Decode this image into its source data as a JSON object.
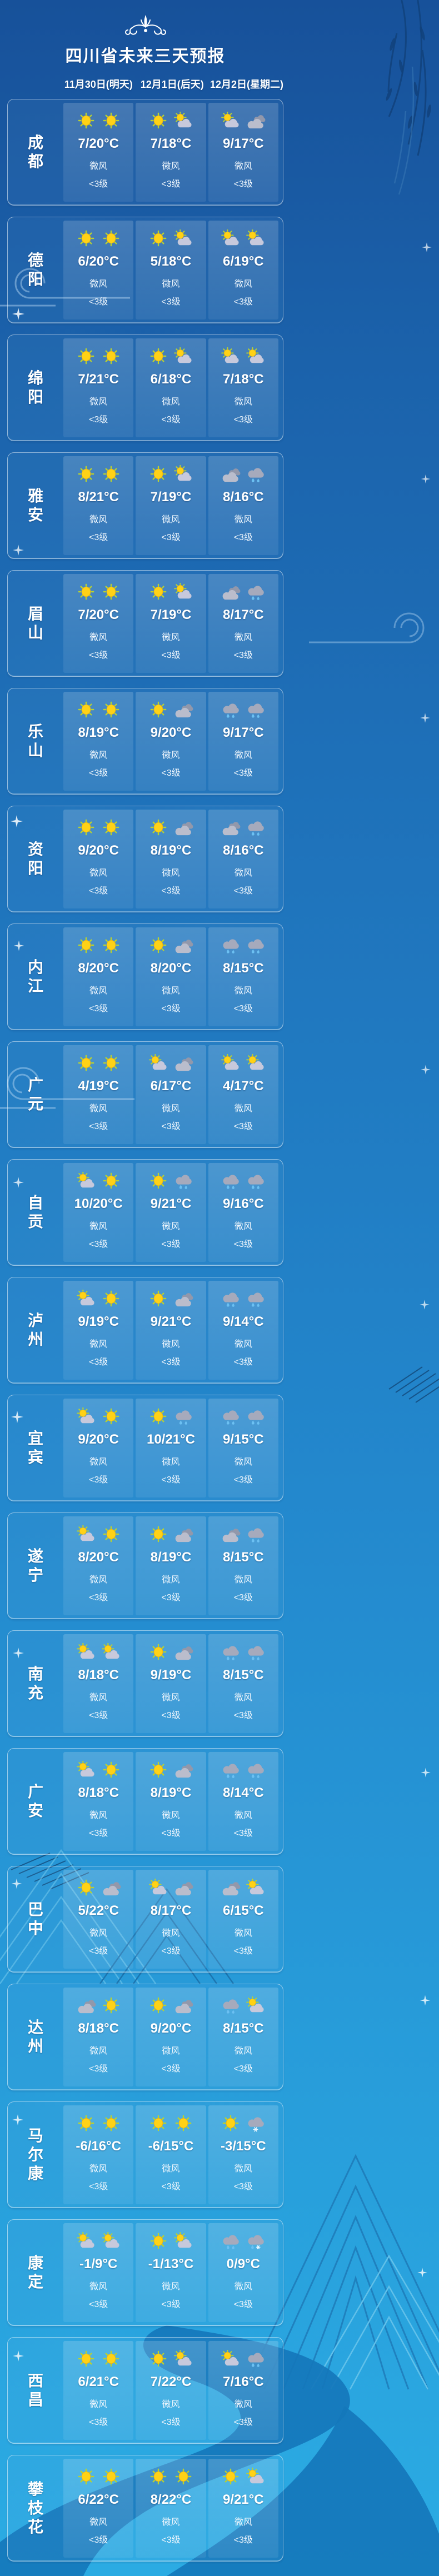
{
  "title": "四川省未来三天预报",
  "dates": [
    "11月30日(明天)",
    "12月1日(后天)",
    "12月2日(星期二)"
  ],
  "wind": {
    "label": "微风",
    "level": "<3级"
  },
  "theme": {
    "bg_top": "#17519a",
    "bg_bottom": "#2babe3",
    "card_border": "rgba(255,255,255,0.5)",
    "text": "#ffffff",
    "sun": "#ffd216",
    "sun_ray": "#b9d22f",
    "cloud_light": "#c7c9dc",
    "cloud_dark": "#9298ab",
    "rain_drop": "#6cc0f2",
    "river": "#1577bb"
  },
  "rows": [
    {
      "city": "成都",
      "cells": [
        {
          "icons": [
            "sunny",
            "sunny"
          ],
          "temp": "7/20°C"
        },
        {
          "icons": [
            "sunny",
            "partly"
          ],
          "temp": "7/18°C"
        },
        {
          "icons": [
            "partly",
            "cloudy"
          ],
          "temp": "9/17°C"
        }
      ]
    },
    {
      "city": "德阳",
      "cells": [
        {
          "icons": [
            "sunny",
            "sunny"
          ],
          "temp": "6/20°C"
        },
        {
          "icons": [
            "sunny",
            "partly"
          ],
          "temp": "5/18°C"
        },
        {
          "icons": [
            "partly",
            "partly"
          ],
          "temp": "6/19°C"
        }
      ]
    },
    {
      "city": "绵阳",
      "cells": [
        {
          "icons": [
            "sunny",
            "sunny"
          ],
          "temp": "7/21°C"
        },
        {
          "icons": [
            "sunny",
            "partly"
          ],
          "temp": "6/18°C"
        },
        {
          "icons": [
            "partly",
            "partly"
          ],
          "temp": "7/18°C"
        }
      ]
    },
    {
      "city": "雅安",
      "cells": [
        {
          "icons": [
            "sunny",
            "sunny"
          ],
          "temp": "8/21°C"
        },
        {
          "icons": [
            "sunny",
            "partly"
          ],
          "temp": "7/19°C"
        },
        {
          "icons": [
            "cloudy",
            "rain"
          ],
          "temp": "8/16°C"
        }
      ]
    },
    {
      "city": "眉山",
      "cells": [
        {
          "icons": [
            "sunny",
            "sunny"
          ],
          "temp": "7/20°C"
        },
        {
          "icons": [
            "sunny",
            "partly"
          ],
          "temp": "7/19°C"
        },
        {
          "icons": [
            "cloudy",
            "rain"
          ],
          "temp": "8/17°C"
        }
      ]
    },
    {
      "city": "乐山",
      "cells": [
        {
          "icons": [
            "sunny",
            "sunny"
          ],
          "temp": "8/19°C"
        },
        {
          "icons": [
            "sunny",
            "cloudy"
          ],
          "temp": "9/20°C"
        },
        {
          "icons": [
            "rain",
            "rain"
          ],
          "temp": "9/17°C"
        }
      ]
    },
    {
      "city": "资阳",
      "cells": [
        {
          "icons": [
            "sunny",
            "sunny"
          ],
          "temp": "9/20°C"
        },
        {
          "icons": [
            "sunny",
            "cloudy"
          ],
          "temp": "8/19°C"
        },
        {
          "icons": [
            "cloudy",
            "rain"
          ],
          "temp": "8/16°C"
        }
      ]
    },
    {
      "city": "内江",
      "cells": [
        {
          "icons": [
            "sunny",
            "sunny"
          ],
          "temp": "8/20°C"
        },
        {
          "icons": [
            "sunny",
            "cloudy"
          ],
          "temp": "8/20°C"
        },
        {
          "icons": [
            "rain",
            "rain"
          ],
          "temp": "8/15°C"
        }
      ]
    },
    {
      "city": "广元",
      "cells": [
        {
          "icons": [
            "sunny",
            "sunny"
          ],
          "temp": "4/19°C"
        },
        {
          "icons": [
            "partly",
            "cloudy"
          ],
          "temp": "6/17°C"
        },
        {
          "icons": [
            "partly",
            "partly"
          ],
          "temp": "4/17°C"
        }
      ]
    },
    {
      "city": "自贡",
      "cells": [
        {
          "icons": [
            "partly",
            "sunny"
          ],
          "temp": "10/20°C"
        },
        {
          "icons": [
            "sunny",
            "rain"
          ],
          "temp": "9/21°C"
        },
        {
          "icons": [
            "rain",
            "rain"
          ],
          "temp": "9/16°C"
        }
      ]
    },
    {
      "city": "泸州",
      "cells": [
        {
          "icons": [
            "partly",
            "sunny"
          ],
          "temp": "9/19°C"
        },
        {
          "icons": [
            "sunny",
            "cloudy"
          ],
          "temp": "9/21°C"
        },
        {
          "icons": [
            "rain",
            "rain"
          ],
          "temp": "9/14°C"
        }
      ]
    },
    {
      "city": "宜宾",
      "cells": [
        {
          "icons": [
            "partly",
            "sunny"
          ],
          "temp": "9/20°C"
        },
        {
          "icons": [
            "sunny",
            "rain"
          ],
          "temp": "10/21°C"
        },
        {
          "icons": [
            "rain",
            "rain"
          ],
          "temp": "9/15°C"
        }
      ]
    },
    {
      "city": "遂宁",
      "cells": [
        {
          "icons": [
            "partly",
            "sunny"
          ],
          "temp": "8/20°C"
        },
        {
          "icons": [
            "sunny",
            "cloudy"
          ],
          "temp": "8/19°C"
        },
        {
          "icons": [
            "cloudy",
            "rain"
          ],
          "temp": "8/15°C"
        }
      ]
    },
    {
      "city": "南充",
      "cells": [
        {
          "icons": [
            "partly",
            "partly"
          ],
          "temp": "8/18°C"
        },
        {
          "icons": [
            "sunny",
            "cloudy"
          ],
          "temp": "9/19°C"
        },
        {
          "icons": [
            "rain",
            "rain"
          ],
          "temp": "8/15°C"
        }
      ]
    },
    {
      "city": "广安",
      "cells": [
        {
          "icons": [
            "partly",
            "sunny"
          ],
          "temp": "8/18°C"
        },
        {
          "icons": [
            "sunny",
            "cloudy"
          ],
          "temp": "8/19°C"
        },
        {
          "icons": [
            "rain",
            "rain"
          ],
          "temp": "8/14°C"
        }
      ]
    },
    {
      "city": "巴中",
      "cells": [
        {
          "icons": [
            "sunny",
            "cloudy"
          ],
          "temp": "5/22°C"
        },
        {
          "icons": [
            "partly",
            "cloudy"
          ],
          "temp": "8/17°C"
        },
        {
          "icons": [
            "cloudy",
            "partly"
          ],
          "temp": "6/15°C"
        }
      ]
    },
    {
      "city": "达州",
      "cells": [
        {
          "icons": [
            "cloudy",
            "sunny"
          ],
          "temp": "8/18°C"
        },
        {
          "icons": [
            "sunny",
            "cloudy"
          ],
          "temp": "9/20°C"
        },
        {
          "icons": [
            "rain",
            "partly"
          ],
          "temp": "8/15°C"
        }
      ]
    },
    {
      "city": "马尔康",
      "cells": [
        {
          "icons": [
            "sunny",
            "sunny"
          ],
          "temp": "-6/16°C"
        },
        {
          "icons": [
            "sunny",
            "sunny"
          ],
          "temp": "-6/15°C"
        },
        {
          "icons": [
            "sunny",
            "snow"
          ],
          "temp": "-3/15°C"
        }
      ]
    },
    {
      "city": "康定",
      "cells": [
        {
          "icons": [
            "partly",
            "partly"
          ],
          "temp": "-1/9°C"
        },
        {
          "icons": [
            "sunny",
            "partly"
          ],
          "temp": "-1/13°C"
        },
        {
          "icons": [
            "rain",
            "sleet"
          ],
          "temp": "0/9°C"
        }
      ]
    },
    {
      "city": "西昌",
      "cells": [
        {
          "icons": [
            "sunny",
            "sunny"
          ],
          "temp": "6/21°C"
        },
        {
          "icons": [
            "sunny",
            "partly"
          ],
          "temp": "7/22°C"
        },
        {
          "icons": [
            "partly",
            "rain"
          ],
          "temp": "7/16°C"
        }
      ]
    },
    {
      "city": "攀枝花",
      "cells": [
        {
          "icons": [
            "sunny",
            "sunny"
          ],
          "temp": "6/22°C"
        },
        {
          "icons": [
            "sunny",
            "sunny"
          ],
          "temp": "8/22°C"
        },
        {
          "icons": [
            "sunny",
            "partly"
          ],
          "temp": "9/21°C"
        }
      ]
    }
  ]
}
